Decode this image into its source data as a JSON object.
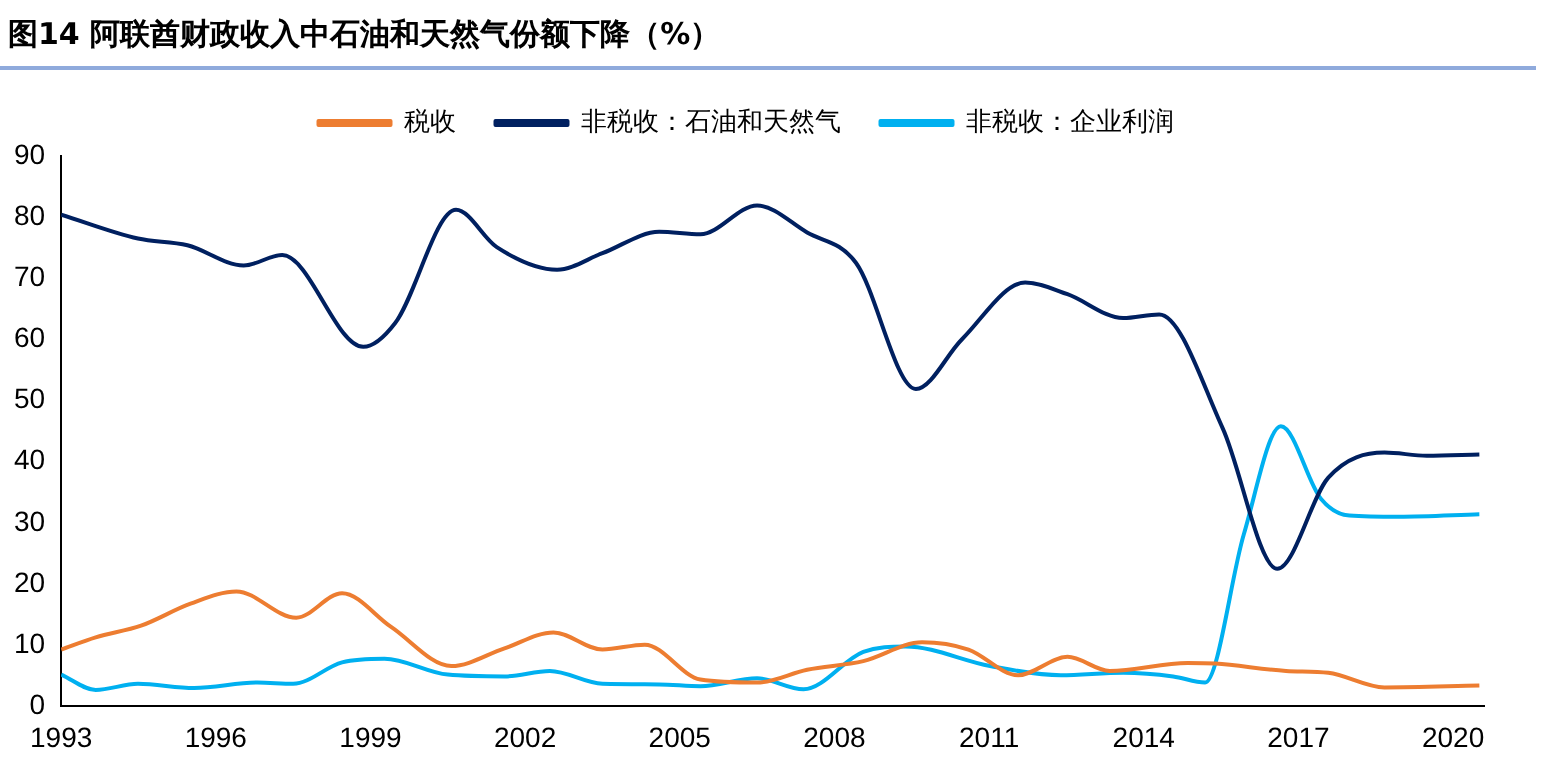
{
  "chart_data": {
    "type": "line",
    "title": "图14 阿联酋财政收入中石油和天然气份额下降（%）",
    "xlim": [
      1993,
      2020.6
    ],
    "xticks": [
      1993,
      1996,
      1999,
      2002,
      2005,
      2008,
      2011,
      2014,
      2017,
      2020
    ],
    "ylim": [
      0,
      90
    ],
    "yticks": [
      0,
      10,
      20,
      30,
      40,
      50,
      60,
      70,
      80,
      90
    ],
    "grid": false,
    "legend": "top",
    "marker": "none",
    "line_style": "solid",
    "series": [
      {
        "name": "税收",
        "color": "#ed7d31",
        "x": [
          1993,
          1993.67,
          1994.55,
          1995.51,
          1996.4,
          1997.56,
          1998.45,
          1999.4,
          2000.57,
          2001.6,
          2002.55,
          2003.5,
          2004.32,
          2005.4,
          2006.5,
          2007.47,
          2008.56,
          2009.7,
          2010.6,
          2011.56,
          2012.52,
          2013.34,
          2014.85,
          2015.39,
          2016.76,
          2017.58,
          2018.67,
          2020.51
        ],
        "values": [
          9.3,
          11.3,
          13.2,
          16.8,
          18.8,
          14.5,
          18.5,
          13.0,
          6.6,
          9.5,
          12.1,
          9.3,
          10.1,
          4.4,
          3.9,
          6.0,
          7.4,
          10.5,
          9.3,
          5.1,
          8.1,
          5.8,
          7.1,
          7.0,
          5.8,
          5.5,
          3.1,
          3.4
        ]
      },
      {
        "name": "非税收：石油和天然气",
        "color": "#002060",
        "x": [
          1993,
          1994.49,
          1995.45,
          1996.54,
          1997.29,
          1998.86,
          1999.48,
          2000.66,
          2001.45,
          2002.62,
          2003.5,
          2004.6,
          2005.4,
          2006.5,
          2007.47,
          2008.42,
          2009.58,
          2010.47,
          2011.7,
          2012.52,
          2013.6,
          2014.3,
          2015.53,
          2016.59,
          2017.58,
          2018.67,
          2019.49,
          2020.51
        ],
        "values": [
          80.4,
          76.5,
          75.4,
          72.1,
          73.8,
          58.8,
          62.7,
          81.2,
          75.1,
          71.4,
          74.1,
          77.6,
          77.2,
          81.9,
          77.5,
          72.5,
          51.9,
          60.0,
          69.3,
          67.4,
          63.5,
          64.1,
          45.5,
          22.5,
          37.4,
          41.5,
          41.0,
          41.2
        ]
      },
      {
        "name": "非税收：企业利润",
        "color": "#00b0f0",
        "x": [
          1993,
          1993.67,
          1994.49,
          1995.58,
          1996.81,
          1997.5,
          1998.45,
          1999.27,
          2000.5,
          2001.6,
          2002.48,
          2003.5,
          2004.6,
          2005.4,
          2006.5,
          2007.4,
          2008.56,
          2009.38,
          2011.02,
          2012.39,
          2013.6,
          2014.57,
          2015.19,
          2015.94,
          2016.66,
          2017.44,
          2017.99,
          2018.95,
          2020.51
        ],
        "values": [
          5.2,
          2.7,
          3.7,
          3.0,
          3.9,
          3.7,
          7.2,
          7.8,
          5.2,
          4.9,
          5.8,
          3.7,
          3.6,
          3.3,
          4.6,
          2.8,
          8.9,
          9.8,
          6.6,
          5.1,
          5.5,
          4.9,
          3.9,
          28.1,
          45.8,
          33.9,
          31.2,
          31.0,
          31.4
        ]
      }
    ]
  }
}
